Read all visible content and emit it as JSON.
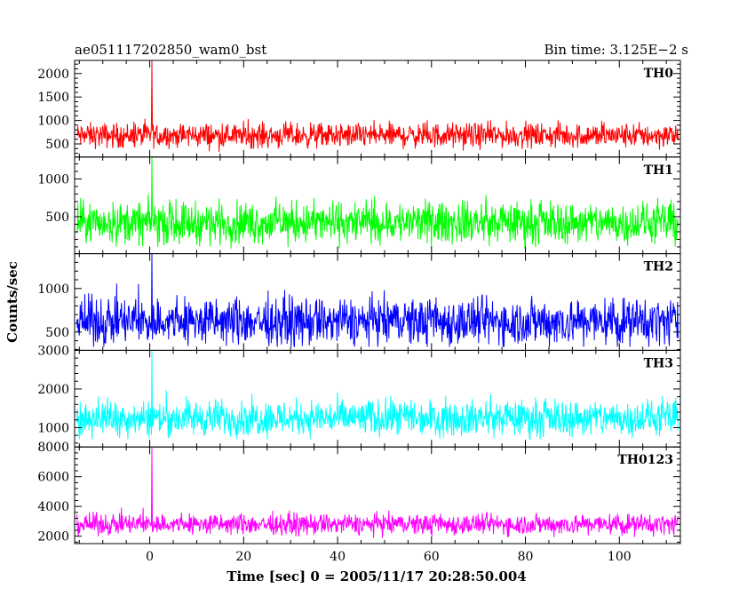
{
  "header": {
    "title": "ae051117202850_wam0_bst",
    "bin_time": "Bin time: 3.125E−2  s"
  },
  "chart_data": {
    "type": "line",
    "xlabel": "Time [sec] 0 = 2005/11/17 20:28:50.004",
    "ylabel": "Counts/sec",
    "xlim": [
      -16,
      113
    ],
    "xticks": [
      0,
      20,
      40,
      60,
      80,
      100
    ],
    "bin_time_s": 0.03125,
    "burst_time_s": 0.5,
    "series": [
      {
        "name": "TH0",
        "color": "#ff0000",
        "ylim": [
          220,
          2280
        ],
        "yticks": [
          500,
          1000,
          1500,
          2000
        ],
        "baseline": 680,
        "band": [
          320,
          1100
        ],
        "peak": 2280
      },
      {
        "name": "TH1",
        "color": "#00ff00",
        "ylim": [
          10,
          1290
        ],
        "yticks": [
          500,
          1000
        ],
        "baseline": 420,
        "band": [
          80,
          900
        ],
        "peak": 1290
      },
      {
        "name": "TH2",
        "color": "#0000ff",
        "ylim": [
          290,
          1400
        ],
        "yticks": [
          500,
          1000
        ],
        "baseline": 620,
        "band": [
          330,
          1150
        ],
        "peak": 1400
      },
      {
        "name": "TH3",
        "color": "#00ffff",
        "ylim": [
          500,
          3000
        ],
        "yticks": [
          1000,
          2000,
          3000
        ],
        "baseline": 1250,
        "band": [
          700,
          2100
        ],
        "peak": 3000
      },
      {
        "name": "TH0123",
        "color": "#ff00ff",
        "ylim": [
          1500,
          8000
        ],
        "yticks": [
          2000,
          4000,
          6000,
          8000
        ],
        "baseline": 2800,
        "band": [
          1900,
          4000
        ],
        "peak": 8000
      }
    ]
  }
}
